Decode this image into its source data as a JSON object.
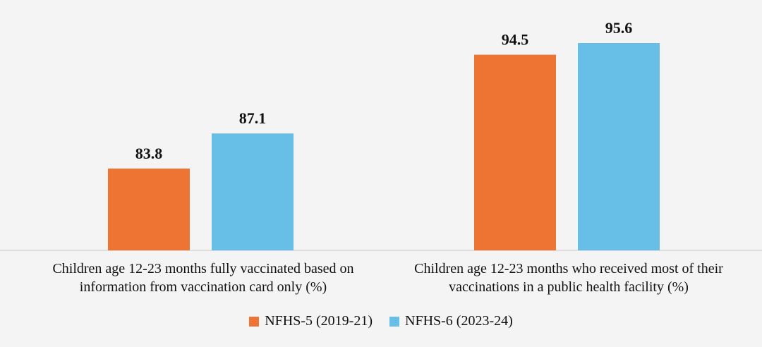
{
  "chart_data": {
    "type": "bar",
    "title": "",
    "xlabel": "",
    "ylabel": "",
    "ylim": [
      0,
      100
    ],
    "grid": false,
    "legend_position": "bottom-center",
    "categories": [
      "Children age 12-23 months fully vaccinated based on information from vaccination card only (%)",
      "Children age 12-23 months who received most of their vaccinations in a public health facility (%)"
    ],
    "category_lines": [
      [
        "Children age 12-23 months fully vaccinated based on",
        "information from vaccination card only (%)"
      ],
      [
        "Children age 12-23 months who received most of their",
        "vaccinations in a public health facility (%)"
      ]
    ],
    "series": [
      {
        "name": "NFHS-5 (2019-21)",
        "color": "#ed7432",
        "values": [
          83.8,
          94.5
        ],
        "labels": [
          "83.8",
          "94.5"
        ]
      },
      {
        "name": "NFHS-6 (2023-24)",
        "color": "#67bfe7",
        "values": [
          87.1,
          95.6
        ],
        "labels": [
          "87.1",
          "95.6"
        ]
      }
    ]
  }
}
